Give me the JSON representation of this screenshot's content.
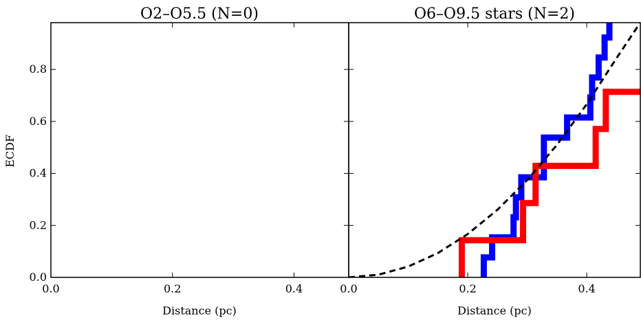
{
  "chart_data": [
    {
      "type": "line",
      "title": "O2–O5.5 (N=0)",
      "xlabel": "Distance (pc)",
      "ylabel": "ECDF",
      "xlim": [
        0.0,
        0.49
      ],
      "ylim": [
        0.0,
        0.98
      ],
      "xticks": [
        "0.0",
        "0.2",
        "0.4"
      ],
      "yticks": [
        "0.0",
        "0.2",
        "0.4",
        "0.6",
        "0.8"
      ],
      "grid": false,
      "series": []
    },
    {
      "type": "line",
      "title": "O6–O9.5 stars (N=2)",
      "xlabel": "Distance (pc)",
      "ylabel": "",
      "xlim": [
        0.0,
        0.49
      ],
      "ylim": [
        0.0,
        0.98
      ],
      "xticks": [
        "0.0",
        "0.2",
        "0.4"
      ],
      "yticks": [],
      "grid": false,
      "series": [
        {
          "color": "#0000ff",
          "style": "step",
          "x": [
            0.227,
            0.227,
            0.227,
            0.241,
            0.241,
            0.277,
            0.277,
            0.281,
            0.281,
            0.29,
            0.29,
            0.296,
            0.296,
            0.328,
            0.328,
            0.367,
            0.367,
            0.406,
            0.406,
            0.409,
            0.409,
            0.42,
            0.42,
            0.43,
            0.43,
            0.438,
            0.438,
            0.49
          ],
          "y": [
            0.0,
            0.0,
            0.077,
            0.077,
            0.154,
            0.154,
            0.231,
            0.231,
            0.308,
            0.308,
            0.385,
            0.385,
            0.385,
            0.385,
            0.538,
            0.538,
            0.615,
            0.615,
            0.692,
            0.692,
            0.769,
            0.769,
            0.846,
            0.846,
            0.923,
            0.923,
            1.0,
            1.0
          ]
        },
        {
          "color": "#ff0000",
          "style": "step",
          "x": [
            0.19,
            0.19,
            0.293,
            0.293,
            0.314,
            0.314,
            0.415,
            0.415,
            0.432,
            0.432,
            0.49
          ],
          "y": [
            0.0,
            0.143,
            0.143,
            0.286,
            0.286,
            0.429,
            0.429,
            0.571,
            0.571,
            0.714,
            0.714
          ]
        },
        {
          "color": "#000000",
          "style": "dashed",
          "x": [
            0.0,
            0.05,
            0.1,
            0.15,
            0.2,
            0.25,
            0.3,
            0.35,
            0.4,
            0.45,
            0.49
          ],
          "y": [
            0.0,
            0.0104,
            0.0416,
            0.0937,
            0.1666,
            0.2603,
            0.3748,
            0.5102,
            0.6664,
            0.8434,
            0.98
          ]
        }
      ]
    }
  ]
}
